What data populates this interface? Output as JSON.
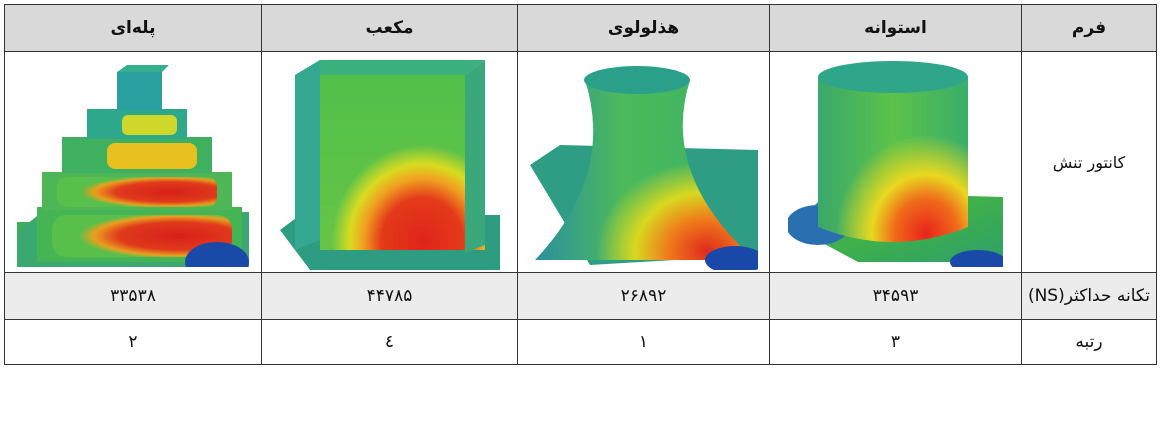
{
  "headers": [
    "فرم",
    "استوانه",
    "هذلولوی",
    "مکعب",
    "پله‌ای"
  ],
  "row_labels": {
    "contour": "کانتور تنش",
    "ns": "تکانه حداکثر(NS)",
    "rank": "رتبه"
  },
  "ns_values": [
    "۳۴۵۹۳",
    "۲۶۸۹۲",
    "۴۴۷۸۵",
    "۳۳۵۳۸"
  ],
  "rank_values": [
    "۳",
    "۱",
    "٤",
    "۲"
  ],
  "colors": {
    "header_bg": "#d9d9d9",
    "ns_row_bg": "#ececec",
    "border": "#333333"
  }
}
